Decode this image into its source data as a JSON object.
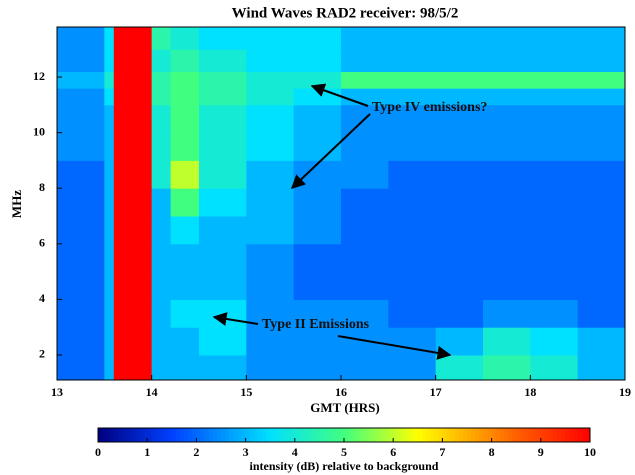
{
  "chart_data": {
    "type": "spectrogram",
    "title": "Wind Waves RAD2 receiver: 98/5/2",
    "xlabel": "GMT (HRS)",
    "ylabel": "MHz",
    "xlim": [
      13,
      19
    ],
    "xticks": [
      13,
      14,
      15,
      16,
      17,
      18,
      19
    ],
    "ylim": [
      1.1,
      13.8
    ],
    "yticks": [
      2,
      4,
      6,
      8,
      10,
      12
    ],
    "x_edges": [
      13,
      13.5,
      13.6,
      14.0,
      14.2,
      14.5,
      15,
      15.5,
      16,
      16.5,
      17,
      17.5,
      18,
      18.5,
      19
    ],
    "y_edges": [
      1.1,
      2,
      3,
      4,
      5,
      6,
      7,
      8,
      9,
      10,
      11,
      11.6,
      12.2,
      13,
      13.8
    ],
    "z": [
      [
        2,
        3,
        10,
        3,
        3,
        3,
        2.5,
        2.5,
        2.5,
        2.5,
        4,
        4.5,
        4,
        3
      ],
      [
        2,
        3,
        10,
        3,
        3,
        3.5,
        2.5,
        2.5,
        2.5,
        2.5,
        3,
        4,
        3.5,
        3
      ],
      [
        2,
        3,
        10,
        3,
        3.5,
        3.5,
        2.5,
        2.5,
        2.5,
        2,
        2,
        2.5,
        2.5,
        2
      ],
      [
        2,
        3,
        10,
        3,
        3,
        3,
        2.5,
        2,
        2,
        2,
        2,
        2,
        2,
        2
      ],
      [
        2,
        3,
        10,
        3,
        3,
        3,
        2.5,
        2,
        2,
        2,
        2,
        2,
        2,
        2
      ],
      [
        2,
        3,
        10,
        3,
        3.5,
        3,
        3,
        2.5,
        2,
        2,
        2,
        2,
        2,
        2
      ],
      [
        2,
        3,
        10,
        3,
        5,
        3.5,
        3,
        2.5,
        2,
        2,
        2,
        2,
        2,
        2
      ],
      [
        2,
        3,
        10,
        4,
        6,
        4,
        3,
        2.5,
        2.5,
        2,
        2,
        2,
        2,
        2
      ],
      [
        2.5,
        3,
        10,
        4,
        5,
        4,
        3.5,
        3,
        2.5,
        2.5,
        2.5,
        2.5,
        2.5,
        2.5
      ],
      [
        2.5,
        3,
        10,
        4,
        5,
        4,
        3.5,
        3,
        2.5,
        2.5,
        2.5,
        2.5,
        2.5,
        2.5
      ],
      [
        2.5,
        3.5,
        10,
        4.5,
        5,
        4.5,
        4,
        3.5,
        3,
        3,
        3,
        3,
        3,
        3
      ],
      [
        3,
        4,
        10,
        4.5,
        5,
        4.5,
        4,
        4,
        5,
        5,
        5,
        5,
        5,
        5
      ],
      [
        2.5,
        3.5,
        10,
        4,
        4.5,
        4,
        3.5,
        3.5,
        3,
        3,
        3,
        3,
        3,
        3
      ],
      [
        2.5,
        3.5,
        10,
        4.5,
        4,
        3.5,
        3.5,
        3.5,
        3,
        3,
        3,
        3,
        3,
        3
      ]
    ],
    "zlim": [
      0,
      10
    ],
    "zticks": [
      0,
      1,
      2,
      3,
      4,
      5,
      6,
      7,
      8,
      9,
      10
    ],
    "colorbar_label": "intensity (dB) relative to background",
    "annotations": [
      "Type IV emissions?",
      "Type II Emissions"
    ]
  }
}
